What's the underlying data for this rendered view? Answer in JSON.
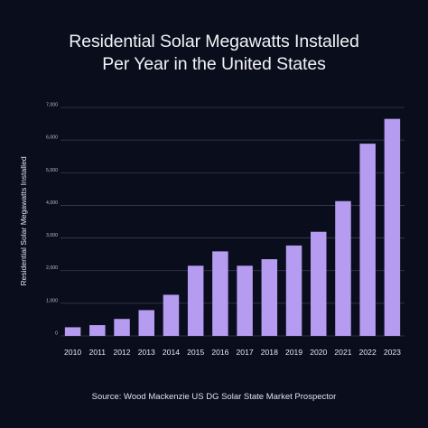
{
  "title_lines": [
    "Residential Solar Megawatts Installed",
    "Per Year in the United States"
  ],
  "source": "Source: Wood Mackenzie US DG Solar State Market Prospector",
  "colors": {
    "background": "#090d1c",
    "bar": "#b59cf0",
    "grid": "#3a3f52",
    "text": "#eef0f5"
  },
  "chart_data": {
    "type": "bar",
    "title": "Residential Solar Megawatts Installed Per Year in the United States",
    "xlabel": "",
    "ylabel": "Residential Solar Megawatts Installed",
    "categories": [
      "2010",
      "2011",
      "2012",
      "2013",
      "2014",
      "2015",
      "2016",
      "2017",
      "2018",
      "2019",
      "2020",
      "2021",
      "2022",
      "2023"
    ],
    "values": [
      265,
      330,
      520,
      790,
      1260,
      2150,
      2590,
      2150,
      2350,
      2770,
      3190,
      4130,
      5890,
      6650
    ],
    "ylim": [
      0,
      7000
    ],
    "yticks": [
      0,
      1000,
      2000,
      3000,
      4000,
      5000,
      6000,
      7000
    ],
    "ytick_labels": [
      "0",
      "1,000",
      "2,000",
      "3,000",
      "4,000",
      "5,000",
      "6,000",
      "7,000"
    ],
    "grid": true,
    "legend": "none"
  }
}
